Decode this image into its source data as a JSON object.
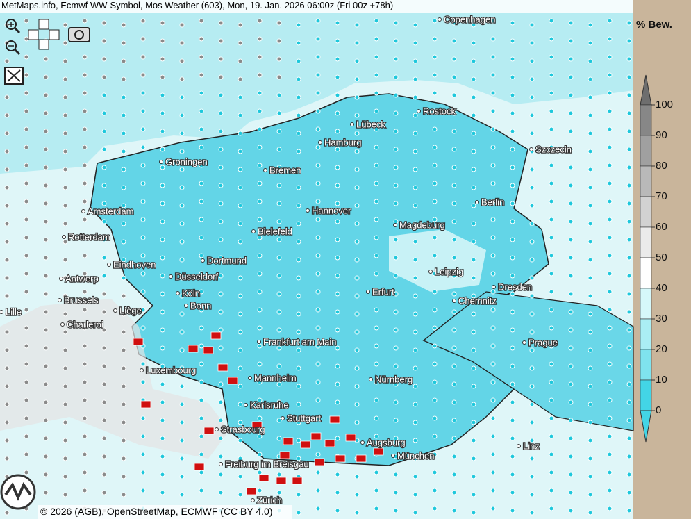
{
  "header": {
    "title": "MetMaps.info, Ecmwf WW-Symbol, Mos Weather (603), Mon, 19. Jan. 2026 06:00z (Fri 00z +78h)"
  },
  "cities": [
    "Copenhagen",
    "Rostock",
    "Lübeck",
    "Hamburg",
    "Szczecin",
    "Groningen",
    "Bremen",
    "Amsterdam",
    "Hannover",
    "Berlin",
    "Bielefeld",
    "Magdeburg",
    "Rotterdam",
    "Dortmund",
    "Eindhoven",
    "Leipzig",
    "Antwerp",
    "Düsseldorf",
    "Dresden",
    "Erfurt",
    "Köln",
    "Brussels",
    "Chemnitz",
    "Bonn",
    "Lille",
    "Liège",
    "Charleroi",
    "Frankfurt am Main",
    "Prague",
    "Luxembourg",
    "Mannheim",
    "Nürnberg",
    "Karlsruhe",
    "Stuttgart",
    "Strasbourg",
    "Augsburg",
    "Linz",
    "München",
    "Freiburg im Breisgau",
    "Zürich"
  ],
  "legend": {
    "title": "% Bew.",
    "ticks": [
      100,
      90,
      80,
      70,
      60,
      50,
      40,
      30,
      20,
      10,
      0
    ],
    "colors": [
      "#6e6e6e",
      "#878787",
      "#a0a0a0",
      "#b9b9b9",
      "#d2d2d2",
      "#ebebeb",
      "#ffffff",
      "#d6f8fa",
      "#aaeef4",
      "#7fe3ee",
      "#43d5e6"
    ]
  },
  "footer": {
    "copyright": "© 2026 (AGB), OpenStreetMap, ECMWF (CC BY 4.0)"
  }
}
